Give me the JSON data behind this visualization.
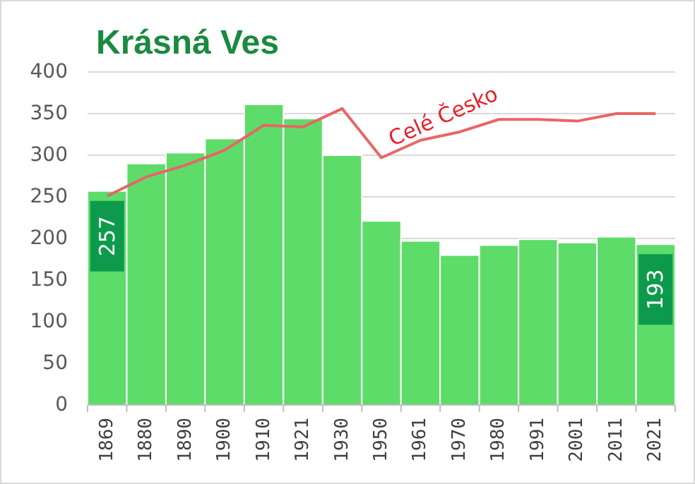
{
  "chart_data": {
    "type": "bar",
    "title": "Krásná Ves",
    "categories": [
      "1869",
      "1880",
      "1890",
      "1900",
      "1910",
      "1921",
      "1930",
      "1950",
      "1961",
      "1970",
      "1980",
      "1991",
      "2001",
      "2011",
      "2021"
    ],
    "series": [
      {
        "color": "#5edc69",
        "values": [
          257,
          290,
          303,
          320,
          361,
          344,
          300,
          221,
          197,
          180,
          192,
          199,
          195,
          202,
          193
        ],
        "value_labels": [
          "257",
          null,
          null,
          null,
          null,
          null,
          null,
          null,
          null,
          null,
          null,
          null,
          null,
          null,
          "193"
        ]
      },
      {
        "type": "line",
        "name": "Celé Česko",
        "color": "#e86666",
        "values": [
          251,
          274,
          288,
          306,
          336,
          334,
          356,
          297,
          318,
          328,
          343,
          343,
          341,
          350,
          350
        ]
      }
    ],
    "ylim": [
      0,
      400
    ],
    "yticks": [
      0,
      50,
      100,
      150,
      200,
      250,
      300,
      350,
      400
    ],
    "grid": "y"
  }
}
